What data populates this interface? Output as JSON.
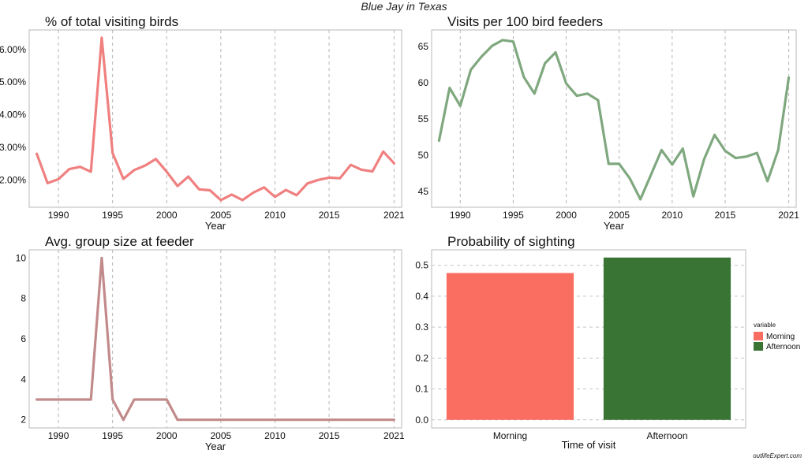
{
  "figure": {
    "suptitle": "Blue Jay in Texas",
    "watermark": "outlifeExpert.com"
  },
  "chart_data": [
    {
      "type": "line",
      "title": "% of total visiting birds",
      "xlabel": "Year",
      "ylabel": "",
      "x": [
        1988,
        1989,
        1990,
        1991,
        1992,
        1993,
        1994,
        1995,
        1996,
        1997,
        1998,
        1999,
        2000,
        2001,
        2002,
        2003,
        2004,
        2005,
        2006,
        2007,
        2008,
        2009,
        2010,
        2011,
        2012,
        2013,
        2014,
        2015,
        2016,
        2017,
        2018,
        2019,
        2020,
        2021
      ],
      "series": [
        {
          "values": [
            2.8,
            1.9,
            2.02,
            2.33,
            2.4,
            2.25,
            6.36,
            2.82,
            2.03,
            2.3,
            2.44,
            2.64,
            2.25,
            1.81,
            2.1,
            1.71,
            1.68,
            1.38,
            1.55,
            1.38,
            1.61,
            1.77,
            1.48,
            1.69,
            1.53,
            1.89,
            2.0,
            2.07,
            2.05,
            2.46,
            2.31,
            2.26,
            2.87,
            2.51
          ],
          "color": "#f08080"
        }
      ],
      "xticks": [
        1990,
        1995,
        2000,
        2005,
        2010,
        2015,
        2021
      ],
      "yticks": [
        2,
        3,
        4,
        5,
        6
      ],
      "ytick_labels": [
        "2.00%",
        "3.00%",
        "4.00%",
        "5.00%",
        "6.00%"
      ],
      "xlim": [
        1987.3,
        2021.7
      ],
      "ylim": [
        1.16,
        6.6
      ],
      "grid": "vertical dashed"
    },
    {
      "type": "line",
      "title": "Visits per 100 bird feeders",
      "xlabel": "Year",
      "ylabel": "",
      "x": [
        1988,
        1989,
        1990,
        1991,
        1992,
        1993,
        1994,
        1995,
        1996,
        1997,
        1998,
        1999,
        2000,
        2001,
        2002,
        2003,
        2004,
        2005,
        2006,
        2007,
        2008,
        2009,
        2010,
        2011,
        2012,
        2013,
        2014,
        2015,
        2016,
        2017,
        2018,
        2019,
        2020,
        2021
      ],
      "series": [
        {
          "values": [
            52,
            59.3,
            56.8,
            61.8,
            63.6,
            65.1,
            65.9,
            65.7,
            60.8,
            58.5,
            62.7,
            64.2,
            59.9,
            58.2,
            58.5,
            57.6,
            48.8,
            48.8,
            46.8,
            43.9,
            47.3,
            50.7,
            48.7,
            50.9,
            44.3,
            49.4,
            52.8,
            50.6,
            49.6,
            49.8,
            50.3,
            46.4,
            50.7,
            60.7
          ],
          "color": "#7fa87f"
        }
      ],
      "xticks": [
        1990,
        1995,
        2000,
        2005,
        2010,
        2015,
        2021
      ],
      "yticks": [
        45,
        50,
        55,
        60,
        65
      ],
      "ytick_labels": [
        "45",
        "50",
        "55",
        "60",
        "65"
      ],
      "xlim": [
        1987.3,
        2021.7
      ],
      "ylim": [
        42.8,
        67.3
      ],
      "grid": "vertical dashed"
    },
    {
      "type": "line",
      "title": "Avg. group size at feeder",
      "xlabel": "Year",
      "ylabel": "",
      "x": [
        1988,
        1989,
        1990,
        1991,
        1992,
        1993,
        1994,
        1995,
        1996,
        1997,
        1998,
        1999,
        2000,
        2001,
        2002,
        2003,
        2004,
        2005,
        2006,
        2007,
        2008,
        2009,
        2010,
        2011,
        2012,
        2013,
        2014,
        2015,
        2016,
        2017,
        2018,
        2019,
        2020,
        2021
      ],
      "series": [
        {
          "values": [
            3,
            3,
            3,
            3,
            3,
            3,
            10,
            3,
            2,
            3,
            3,
            3,
            3,
            2,
            2,
            2,
            2,
            2,
            2,
            2,
            2,
            2,
            2,
            2,
            2,
            2,
            2,
            2,
            2,
            2,
            2,
            2,
            2,
            2
          ],
          "color": "#c28a8a"
        }
      ],
      "xticks": [
        1990,
        1995,
        2000,
        2005,
        2010,
        2015,
        2021
      ],
      "yticks": [
        2,
        4,
        6,
        8,
        10
      ],
      "ytick_labels": [
        "2",
        "4",
        "6",
        "8",
        "10"
      ],
      "xlim": [
        1987.3,
        2021.7
      ],
      "ylim": [
        1.6,
        10.4
      ],
      "grid": "vertical dashed"
    },
    {
      "type": "bar",
      "title": "Probability of sighting",
      "xlabel": "Time of visit",
      "ylabel": "",
      "categories": [
        "Morning",
        "Afternoon"
      ],
      "values": [
        0.475,
        0.525
      ],
      "colors": [
        "#fa6e61",
        "#3a7435"
      ],
      "yticks": [
        0,
        0.1,
        0.2,
        0.3,
        0.4,
        0.5
      ],
      "ytick_labels": [
        "0.0",
        "0.1",
        "0.2",
        "0.3",
        "0.4",
        "0.5"
      ],
      "ylim": [
        -0.026,
        0.55
      ],
      "legend": {
        "title": "variable",
        "entries": [
          "Morning",
          "Afternoon"
        ],
        "position": "right"
      },
      "grid": "horizontal dashed"
    }
  ]
}
